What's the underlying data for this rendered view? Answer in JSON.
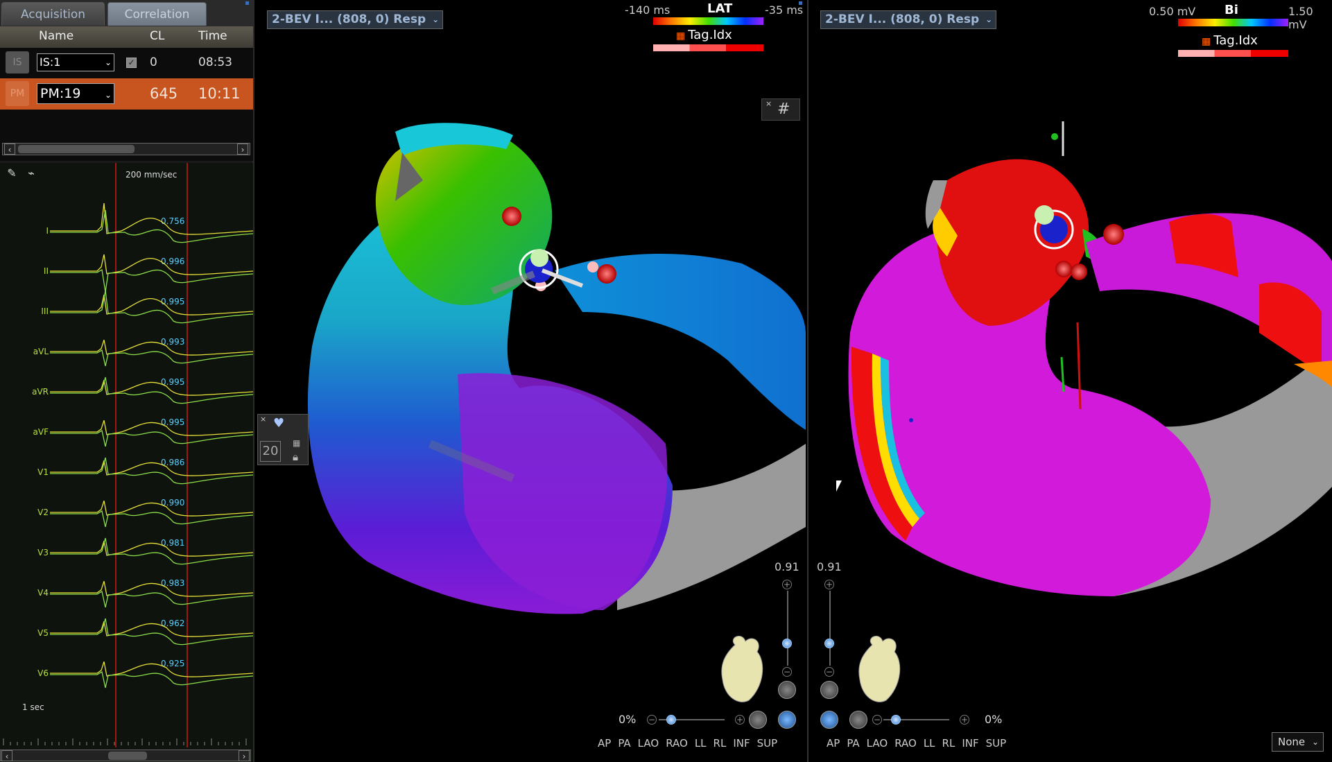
{
  "tabs": [
    {
      "label": "Acquisition"
    },
    {
      "label": "Correlation"
    }
  ],
  "table": {
    "headers": {
      "name": "Name",
      "cl": "CL",
      "time": "Time"
    },
    "rows": [
      {
        "icon": "IS",
        "name": "IS:1",
        "cl": "0",
        "time": "08:53"
      },
      {
        "icon": "PM",
        "name": "PM:19",
        "cl": "645",
        "time": "10:11"
      }
    ]
  },
  "ecg": {
    "speed": "200 mm/sec",
    "scale": "1 sec",
    "leads": [
      {
        "name": "I",
        "value": "0.756"
      },
      {
        "name": "II",
        "value": "0.996"
      },
      {
        "name": "III",
        "value": "0.995"
      },
      {
        "name": "aVL",
        "value": "0.993"
      },
      {
        "name": "aVR",
        "value": "0.995"
      },
      {
        "name": "aVF",
        "value": "0.995"
      },
      {
        "name": "V1",
        "value": "0.986"
      },
      {
        "name": "V2",
        "value": "0.990"
      },
      {
        "name": "V3",
        "value": "0.981"
      },
      {
        "name": "V4",
        "value": "0.983"
      },
      {
        "name": "V5",
        "value": "0.962"
      },
      {
        "name": "V6",
        "value": "0.925"
      }
    ]
  },
  "side_control": {
    "close": "×",
    "value": "20"
  },
  "left_map": {
    "dropdown": "2-BEV I... (808, 0) Resp",
    "legend_min": "-140 ms",
    "legend_title": "LAT",
    "legend_max": "-35 ms",
    "tag_label": "Tag.Idx",
    "zoom_value": "0.91",
    "close": "×",
    "percent": "0%",
    "views": [
      "AP",
      "PA",
      "LAO",
      "RAO",
      "LL",
      "RL",
      "INF",
      "SUP"
    ]
  },
  "right_map": {
    "dropdown": "2-BEV I... (808, 0) Resp",
    "legend_min": "0.50 mV",
    "legend_title": "Bi",
    "legend_max": "1.50 mV",
    "tag_label": "Tag.Idx",
    "zoom_value": "0.91",
    "percent": "0%",
    "views": [
      "AP",
      "PA",
      "LAO",
      "RAO",
      "LL",
      "RL",
      "INF",
      "SUP"
    ],
    "display_select": "None"
  },
  "colors": {
    "accent_row": "#c8551f",
    "ecg_trace": "#b8e23a",
    "ecg_marker": "#d01818",
    "ecg_value": "#5bd0ff"
  }
}
